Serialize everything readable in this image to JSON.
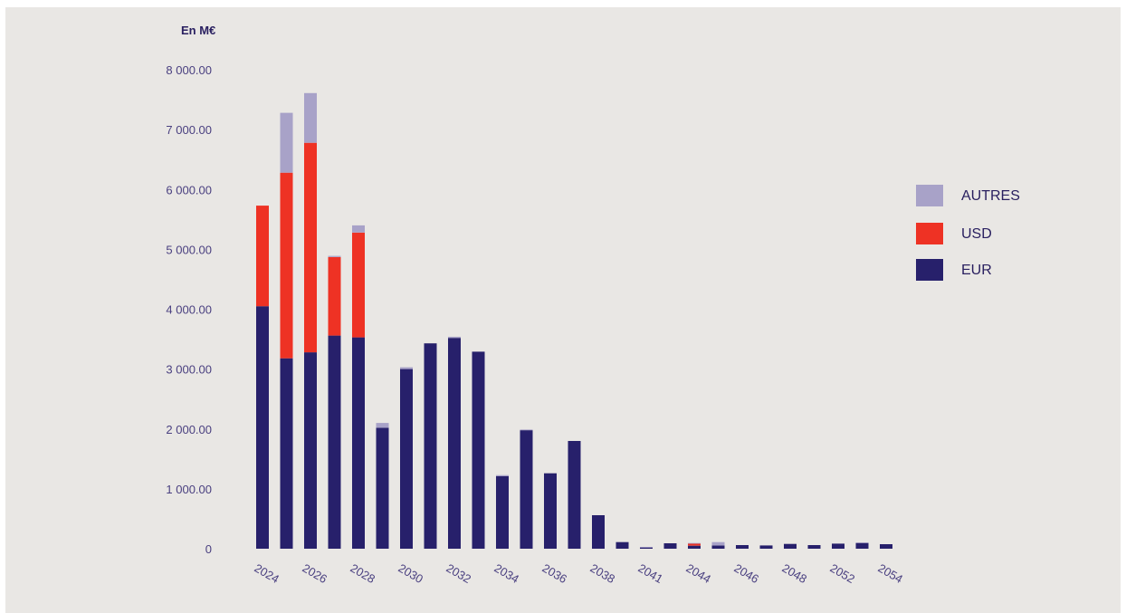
{
  "colors": {
    "background": "#e9e7e4",
    "EUR": "#27206b",
    "USD": "#ee3224",
    "Autres": "#a8a2c8",
    "text": "#2a2060"
  },
  "chart_data": {
    "type": "bar",
    "stacked": true,
    "unit_label": "En M€",
    "ylim": [
      0,
      8000
    ],
    "ytick_values": [
      0,
      1000,
      2000,
      3000,
      4000,
      5000,
      6000,
      7000,
      8000
    ],
    "ytick_labels": [
      "0",
      "1 000.00",
      "2 000.00",
      "3 000.00",
      "4 000.00",
      "5 000.00",
      "6 000.00",
      "7 000.00",
      "8 000.00"
    ],
    "categories": [
      "2024",
      "2025",
      "2026",
      "2027",
      "2028",
      "2029",
      "2030",
      "2031",
      "2032",
      "2033",
      "2034",
      "2035",
      "2036",
      "2037",
      "2038",
      "2039",
      "2041",
      "2042",
      "2044",
      "2045",
      "2046",
      "2047",
      "2048",
      "2049",
      "2052",
      "2053",
      "2054"
    ],
    "xtick_labels": [
      "2024",
      "2026",
      "2028",
      "2030",
      "2032",
      "2034",
      "2036",
      "2038",
      "2041",
      "2044",
      "2046",
      "2048",
      "2052",
      "2054"
    ],
    "series": [
      {
        "name": "EUR",
        "values": [
          4050,
          3180,
          3280,
          3560,
          3530,
          2020,
          3000,
          3430,
          3520,
          3290,
          1210,
          1980,
          1260,
          1800,
          560,
          110,
          25,
          90,
          50,
          55,
          60,
          55,
          80,
          60,
          85,
          100,
          75
        ]
      },
      {
        "name": "USD",
        "values": [
          1680,
          3100,
          3500,
          1310,
          1750,
          0,
          0,
          0,
          0,
          0,
          0,
          0,
          0,
          0,
          0,
          0,
          0,
          0,
          40,
          0,
          0,
          0,
          0,
          0,
          0,
          0,
          0
        ]
      },
      {
        "name": "Autres",
        "values": [
          0,
          1000,
          830,
          20,
          120,
          80,
          30,
          0,
          20,
          0,
          20,
          10,
          0,
          0,
          0,
          0,
          5,
          0,
          5,
          55,
          0,
          0,
          0,
          0,
          0,
          5,
          0
        ]
      }
    ],
    "legend": [
      {
        "name": "Autres",
        "label": "AUTRES"
      },
      {
        "name": "USD",
        "label": "USD"
      },
      {
        "name": "EUR",
        "label": "EUR"
      }
    ],
    "legend_position": "right",
    "grid": false
  }
}
